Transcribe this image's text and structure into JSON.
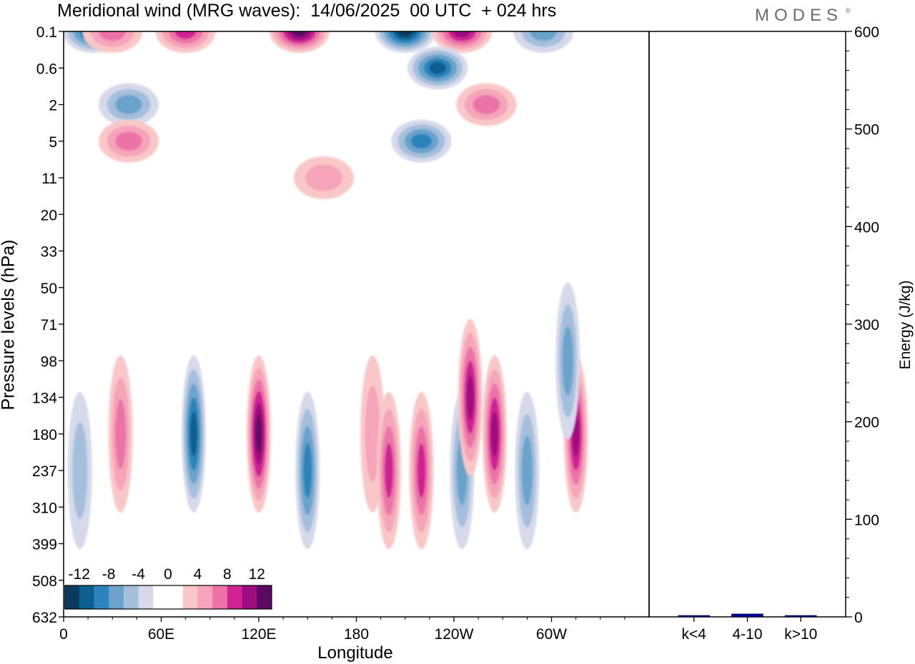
{
  "title": "Meridional wind (MRG waves):  14/06/2025  00 UTC  + 024 hrs",
  "logo": "MODES",
  "logo_mark": "®",
  "colors": {
    "neg": [
      "#0b3a5c",
      "#0d5f8f",
      "#2b84bb",
      "#6ba3cc",
      "#a4bfdb",
      "#d5d9ea"
    ],
    "pos": [
      "#f9c7c7",
      "#f5a4b9",
      "#eb73a8",
      "#cf2492",
      "#9e0d7f",
      "#5a0a62"
    ],
    "energy_bar": "#0000a0"
  },
  "chart_data": [
    {
      "type": "heatmap",
      "title": "Meridional wind (MRG waves):  14/06/2025  00 UTC  + 024 hrs",
      "xlabel": "Longitude",
      "ylabel": "Pressure levels (hPa)",
      "x_ticks": [
        "0",
        "60E",
        "120E",
        "180",
        "120W",
        "60W"
      ],
      "y_ticks": [
        "0.1",
        "0.6",
        "2",
        "5",
        "11",
        "20",
        "33",
        "50",
        "71",
        "98",
        "134",
        "180",
        "237",
        "310",
        "399",
        "508",
        "632"
      ],
      "colorbar": {
        "levels": [
          -12,
          -10,
          -8,
          -6,
          -4,
          -2,
          0,
          2,
          4,
          6,
          8,
          10,
          12
        ],
        "labels": [
          "-12",
          "-8",
          "-4",
          "0",
          "4",
          "8",
          "12"
        ]
      },
      "features": [
        {
          "lon": 18,
          "level": "0.1",
          "value": -10
        },
        {
          "lon": 30,
          "level": "0.1",
          "value": 6
        },
        {
          "lon": 75,
          "level": "0.1",
          "value": 7
        },
        {
          "lon": 145,
          "level": "0.1",
          "value": 12
        },
        {
          "lon": 210,
          "level": "0.1",
          "value": -12
        },
        {
          "lon": 245,
          "level": "0.1",
          "value": 10
        },
        {
          "lon": 295,
          "level": "0.1",
          "value": -6
        },
        {
          "lon": 230,
          "level": "0.6",
          "value": -10
        },
        {
          "lon": 260,
          "level": "2",
          "value": 6
        },
        {
          "lon": 40,
          "level": "2",
          "value": -5
        },
        {
          "lon": 220,
          "level": "5",
          "value": -7
        },
        {
          "lon": 40,
          "level": "5",
          "value": 6
        },
        {
          "lon": 160,
          "level": "11",
          "value": 3
        },
        {
          "lon": 10,
          "level": "237",
          "value": -3
        },
        {
          "lon": 35,
          "level": "180",
          "value": 5
        },
        {
          "lon": 80,
          "level": "180",
          "value": -10
        },
        {
          "lon": 120,
          "level": "180",
          "value": 12
        },
        {
          "lon": 150,
          "level": "237",
          "value": -8
        },
        {
          "lon": 190,
          "level": "180",
          "value": 3
        },
        {
          "lon": 200,
          "level": "237",
          "value": 7
        },
        {
          "lon": 220,
          "level": "237",
          "value": 8
        },
        {
          "lon": 245,
          "level": "237",
          "value": -6
        },
        {
          "lon": 250,
          "level": "134",
          "value": 10
        },
        {
          "lon": 265,
          "level": "180",
          "value": 9
        },
        {
          "lon": 285,
          "level": "237",
          "value": -6
        },
        {
          "lon": 315,
          "level": "180",
          "value": 9
        },
        {
          "lon": 310,
          "level": "98",
          "value": -5
        }
      ]
    },
    {
      "type": "bar",
      "ylabel": "Energy (J/kg)",
      "categories": [
        "k<4",
        "4-10",
        "k>10"
      ],
      "values": [
        1,
        3,
        0.5
      ],
      "ylim": [
        0,
        600
      ],
      "y_ticks": [
        "0",
        "100",
        "200",
        "300",
        "400",
        "500",
        "600"
      ]
    }
  ]
}
